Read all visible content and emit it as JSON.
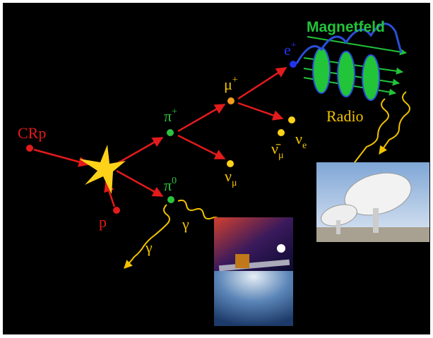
{
  "labels": {
    "crp": "CRp",
    "p": "p",
    "pi_plus": {
      "base": "π",
      "sup": "+"
    },
    "pi_zero": {
      "base": "π",
      "sup": "0"
    },
    "mu_plus": {
      "base": "μ",
      "sup": "+"
    },
    "nu_mu": {
      "base": "ν",
      "sub": "μ"
    },
    "nu_mu_bar": {
      "base": "ν̄",
      "sub": "μ"
    },
    "nu_e": {
      "base": "ν",
      "sub": "e"
    },
    "e_plus": {
      "base": "e",
      "sup": "+"
    },
    "gamma_left": "γ",
    "gamma_right": "γ",
    "magnetfeld": "Magnetfeld",
    "radio": "Radio"
  }
}
